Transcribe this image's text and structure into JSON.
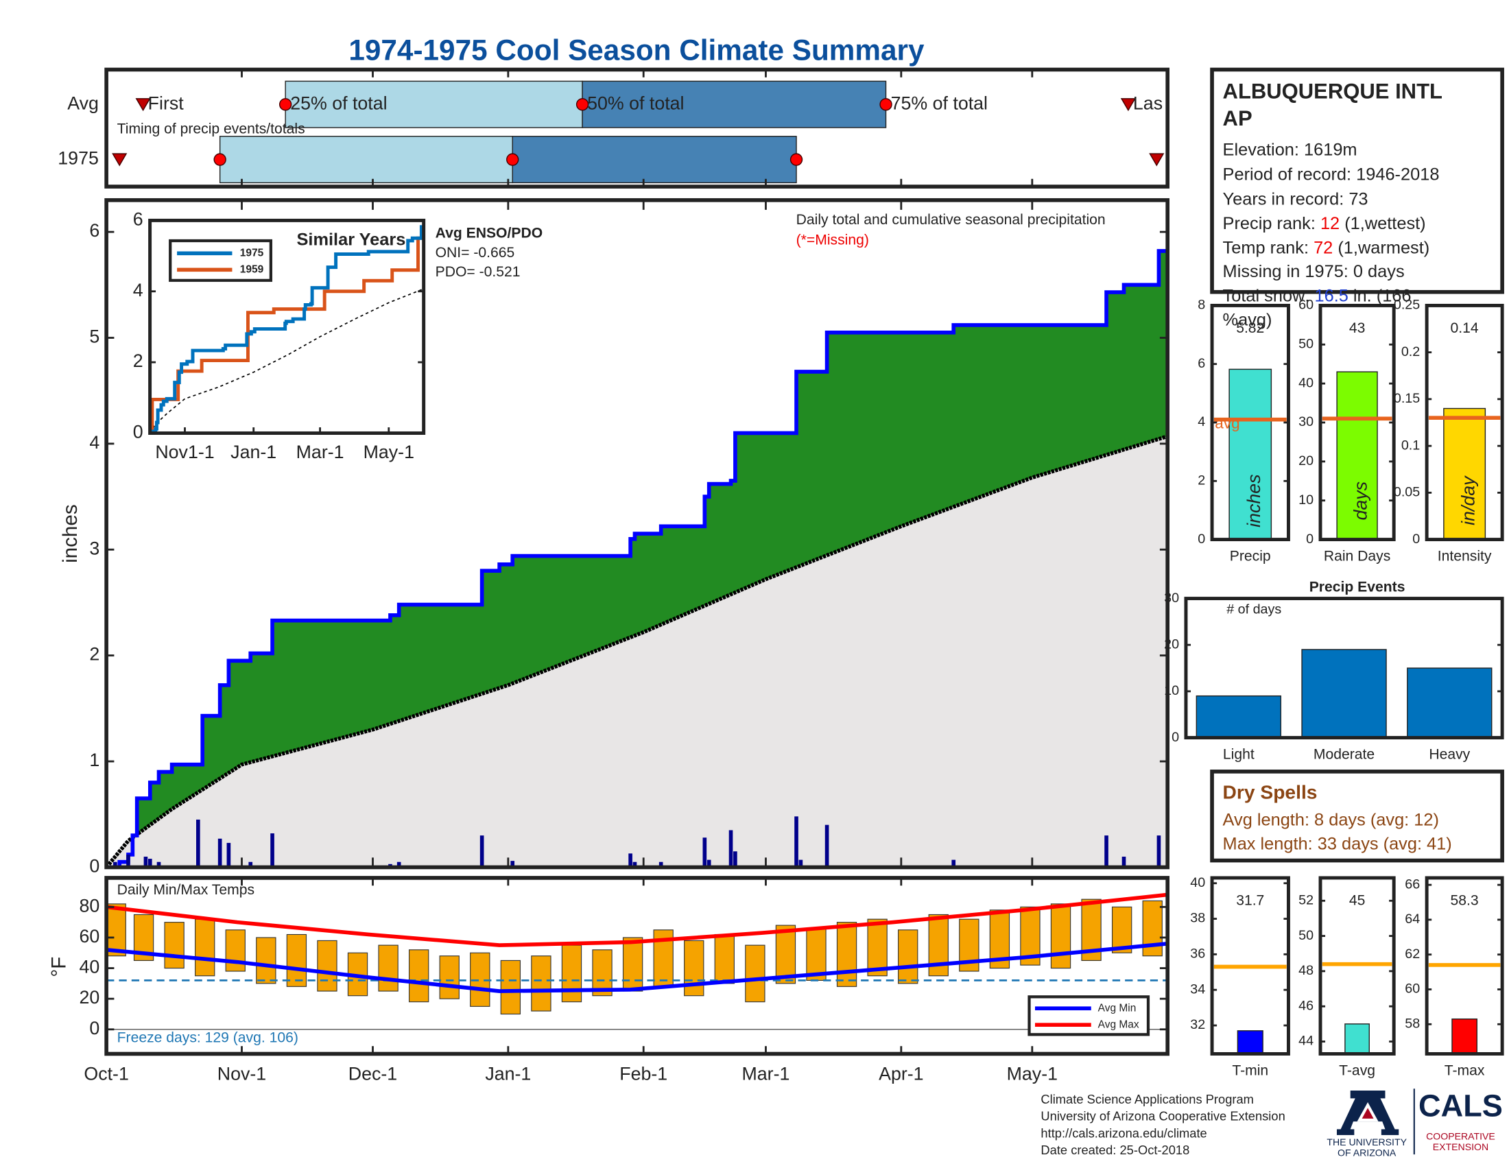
{
  "title": "1974-1975 Cool Season Climate Summary",
  "chart_data": [
    {
      "type": "timing",
      "subtitle": "Timing of precip events/totals",
      "marker_labels": [
        "First",
        "25% of total",
        "50% of total",
        "75% of total",
        "Las"
      ],
      "series": [
        {
          "name": "Avg",
          "values": [
            8.4,
            41,
            109,
            178.5,
            234
          ]
        },
        {
          "name": "1975",
          "values": [
            3,
            26,
            93,
            158,
            240.5
          ]
        }
      ],
      "colors": [
        "#add8e6",
        "#4682b4"
      ],
      "marker_color": "#ff0000",
      "xlim": [
        0,
        243
      ]
    },
    {
      "type": "cumulative-step",
      "annotation": "Daily total and cumulative seasonal precipitation",
      "note": "(*=Missing)",
      "ylabel": "inches",
      "xlim": [
        0,
        243
      ],
      "ylim": [
        0,
        6.3
      ],
      "yticks": [
        0,
        1,
        2,
        3,
        4,
        5,
        6
      ],
      "series": [
        {
          "color": "#0000ff",
          "x": [
            0,
            3,
            5,
            6,
            7,
            10,
            12,
            15,
            22,
            26,
            28,
            33,
            38,
            65,
            67,
            86,
            90,
            93,
            120,
            121,
            127,
            137,
            138,
            143,
            144,
            158,
            165,
            194,
            229,
            233,
            241
          ],
          "values": [
            0,
            0.05,
            0.12,
            0.3,
            0.65,
            0.8,
            0.9,
            0.97,
            1.43,
            1.72,
            1.95,
            2.02,
            2.33,
            2.38,
            2.48,
            2.8,
            2.86,
            2.94,
            3.1,
            3.15,
            3.22,
            3.5,
            3.62,
            3.65,
            4.1,
            4.68,
            5.05,
            5.12,
            5.43,
            5.5,
            5.82
          ]
        },
        {
          "color": "#000000",
          "x": [
            0,
            5,
            15,
            31,
            61,
            92,
            123,
            151,
            182,
            212,
            243
          ],
          "values": [
            0,
            0.25,
            0.55,
            0.97,
            1.3,
            1.72,
            2.22,
            2.72,
            3.22,
            3.68,
            4.07
          ]
        }
      ],
      "fill_color": "#228b22",
      "avg_fill_color": "#e8e6e6",
      "daily": {
        "color": "#00008b",
        "x": [
          2,
          5,
          9,
          10,
          12,
          21,
          26,
          28,
          33,
          38,
          65,
          67,
          86,
          93,
          120,
          121,
          127,
          137,
          138,
          143,
          144,
          158,
          159,
          165,
          194,
          229,
          233,
          241
        ],
        "values": [
          0.05,
          0.12,
          0.1,
          0.08,
          0.05,
          0.45,
          0.27,
          0.23,
          0.05,
          0.32,
          0.03,
          0.05,
          0.3,
          0.06,
          0.13,
          0.05,
          0.05,
          0.28,
          0.07,
          0.35,
          0.15,
          0.48,
          0.07,
          0.4,
          0.07,
          0.3,
          0.1,
          0.3
        ]
      }
    },
    {
      "type": "line",
      "title": "Similar Years",
      "annotations": [
        "Avg ENSO/PDO",
        "ONI= -0.665",
        "PDO= -0.521"
      ],
      "xlim": [
        0,
        243
      ],
      "ylim": [
        0,
        6
      ],
      "yticks": [
        0,
        2,
        4,
        6
      ],
      "xticks": [
        {
          "value": 31,
          "label": "Nov1-1"
        },
        {
          "value": 92,
          "label": "Jan-1"
        },
        {
          "value": 151,
          "label": "Mar-1"
        },
        {
          "value": 212,
          "label": "May-1"
        }
      ],
      "series": [
        {
          "name": "1975",
          "color": "#0072bd",
          "x": [
            0,
            3,
            5,
            6,
            7,
            10,
            12,
            15,
            22,
            26,
            28,
            33,
            38,
            65,
            67,
            86,
            90,
            93,
            120,
            121,
            127,
            137,
            138,
            143,
            144,
            158,
            165,
            194,
            229,
            233,
            241
          ],
          "values": [
            0,
            0.05,
            0.12,
            0.3,
            0.65,
            0.8,
            0.9,
            0.97,
            1.43,
            1.72,
            1.95,
            2.02,
            2.33,
            2.38,
            2.48,
            2.8,
            2.86,
            2.94,
            3.1,
            3.15,
            3.22,
            3.5,
            3.62,
            3.65,
            4.1,
            4.68,
            5.05,
            5.12,
            5.43,
            5.5,
            5.82
          ]
        },
        {
          "name": "1959",
          "color": "#d95319",
          "x": [
            0,
            2,
            25,
            46,
            87,
            110,
            155,
            190,
            215,
            238
          ],
          "values": [
            0,
            0.95,
            1.75,
            2.05,
            3.4,
            3.5,
            4.0,
            4.3,
            4.6,
            5.5
          ]
        }
      ],
      "average": {
        "color": "#000000",
        "x": [
          0,
          5,
          15,
          31,
          61,
          92,
          123,
          151,
          182,
          212,
          243
        ],
        "values": [
          0,
          0.25,
          0.55,
          0.97,
          1.3,
          1.72,
          2.22,
          2.72,
          3.22,
          3.68,
          4.07
        ]
      }
    },
    {
      "type": "range-bar",
      "title": "Daily Min/Max Temps",
      "ylabel": "°F",
      "annotation": "Freeze days: 129 (avg. 106)",
      "freeze_threshold": 32,
      "xlim": [
        0,
        243
      ],
      "xticks": [
        {
          "value": 0,
          "label": "Oct-1"
        },
        {
          "value": 31,
          "label": "Nov-1"
        },
        {
          "value": 61,
          "label": "Dec-1"
        },
        {
          "value": 92,
          "label": "Jan-1"
        },
        {
          "value": 123,
          "label": "Feb-1"
        },
        {
          "value": 151,
          "label": "Mar-1"
        },
        {
          "value": 182,
          "label": "Apr-1"
        },
        {
          "value": 212,
          "label": "May-1"
        }
      ],
      "ylim": [
        -16,
        99
      ],
      "yticks": [
        0,
        20,
        40,
        60,
        80
      ],
      "color": "#f5a300",
      "x": [
        0,
        7,
        14,
        21,
        28,
        35,
        42,
        49,
        56,
        63,
        70,
        77,
        84,
        91,
        98,
        105,
        112,
        119,
        126,
        133,
        140,
        147,
        154,
        161,
        168,
        175,
        182,
        189,
        196,
        203,
        210,
        217,
        224,
        231,
        238
      ],
      "min": [
        48,
        45,
        40,
        35,
        38,
        30,
        28,
        25,
        22,
        25,
        18,
        20,
        15,
        10,
        12,
        18,
        22,
        25,
        28,
        22,
        30,
        18,
        30,
        32,
        28,
        35,
        30,
        35,
        38,
        40,
        42,
        40,
        45,
        50,
        48
      ],
      "max": [
        82,
        75,
        70,
        72,
        65,
        60,
        62,
        58,
        50,
        55,
        52,
        48,
        50,
        45,
        48,
        55,
        52,
        60,
        65,
        58,
        62,
        55,
        68,
        66,
        70,
        72,
        65,
        75,
        72,
        78,
        80,
        82,
        85,
        80,
        84
      ],
      "series": [
        {
          "name": "Avg Min",
          "color": "#0000ff",
          "x": [
            0,
            30,
            60,
            90,
            120,
            150,
            180,
            210,
            243
          ],
          "values": [
            52,
            44,
            34,
            25,
            26,
            33,
            40,
            47,
            56
          ]
        },
        {
          "name": "Avg Max",
          "color": "#ff0000",
          "x": [
            0,
            30,
            60,
            90,
            120,
            150,
            180,
            210,
            243
          ],
          "values": [
            80,
            70,
            62,
            55,
            57,
            63,
            70,
            78,
            88
          ]
        }
      ]
    },
    {
      "type": "bar",
      "categories": [
        "Precip"
      ],
      "values": [
        5.82
      ],
      "unit": "inches",
      "color": "#40e0d0",
      "avg": 4.1,
      "avg_label": "avg",
      "avg_color": "#e8641e",
      "ylim": [
        0,
        8
      ],
      "yticks": [
        0,
        2,
        4,
        6,
        8
      ]
    },
    {
      "type": "bar",
      "categories": [
        "Rain Days"
      ],
      "values": [
        43
      ],
      "unit": "days",
      "color": "#7cfc00",
      "avg": 31,
      "avg_color": "#e8641e",
      "ylim": [
        0,
        60
      ],
      "yticks": [
        0,
        10,
        20,
        30,
        40,
        50,
        60
      ]
    },
    {
      "type": "bar",
      "categories": [
        "Intensity"
      ],
      "values": [
        0.14
      ],
      "unit": "in/day",
      "color": "#ffd700",
      "avg": 0.13,
      "avg_color": "#e8641e",
      "ylim": [
        0,
        0.25
      ],
      "yticks": [
        0,
        0.05,
        0.1,
        0.15,
        0.2,
        0.25
      ]
    },
    {
      "type": "bar",
      "title": "Precip Events",
      "ylabel": "# of days",
      "categories": [
        "Light",
        "Moderate",
        "Heavy"
      ],
      "values": [
        9,
        19,
        15
      ],
      "color": "#0072bd",
      "ylim": [
        0,
        30
      ],
      "yticks": [
        0,
        10,
        20,
        30
      ]
    },
    {
      "type": "bar",
      "categories": [
        "T-min"
      ],
      "values": [
        31.7
      ],
      "color": "#0000ff",
      "avg": 35.3,
      "avg_color": "#ffa500",
      "ylim": [
        30.4,
        40.3
      ],
      "yticks": [
        32,
        34,
        36,
        38,
        40
      ]
    },
    {
      "type": "bar",
      "categories": [
        "T-avg"
      ],
      "values": [
        45
      ],
      "color": "#40e0d0",
      "avg": 48.4,
      "avg_color": "#ffa500",
      "ylim": [
        43.3,
        53.3
      ],
      "yticks": [
        44,
        46,
        48,
        50,
        52
      ]
    },
    {
      "type": "bar",
      "categories": [
        "T-max"
      ],
      "values": [
        58.3
      ],
      "color": "#ff0000",
      "avg": 61.4,
      "avg_color": "#ffa500",
      "ylim": [
        56.3,
        66.4
      ],
      "yticks": [
        58,
        60,
        62,
        64,
        66
      ]
    }
  ],
  "station": {
    "title_lines": [
      "ALBUQUERQUE INTL",
      "AP"
    ],
    "lines": [
      "Elevation: 1619m",
      "Period of record: 1946-2018",
      "Years in record: 73"
    ],
    "precip_rank": {
      "label": "Precip rank: ",
      "value": "12",
      "note": " (1,wettest)"
    },
    "temp_rank": {
      "label": "Temp rank: ",
      "value": "72",
      "note": " (1,warmest)"
    },
    "missing": "Missing in 1975: 0 days",
    "snow": {
      "label": "Total snow: ",
      "value": "16.5",
      "note": " in. (166",
      "note_end": "%avg)"
    }
  },
  "dry_spells": {
    "title": "Dry Spells",
    "lines": [
      "Avg length: 8 days (avg: 12)",
      "Max length: 33 days (avg: 41)"
    ]
  },
  "footer": {
    "lines": [
      "Climate Science Applications Program",
      "University of Arizona Cooperative Extension",
      "http://cals.arizona.edu/climate",
      " Date created: 25-Oct-2018"
    ],
    "logo_left": [
      "THE UNIVERSITY",
      "OF ARIZONA"
    ],
    "logo_right": "CALS",
    "logo_right_sub": [
      "COOPERATIVE",
      "EXTENSION"
    ]
  }
}
